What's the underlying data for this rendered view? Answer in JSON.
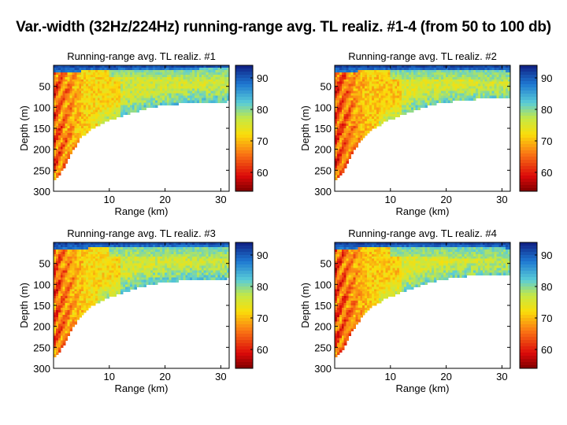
{
  "figure": {
    "title": "Var.-width (32Hz/224Hz) running-range avg. TL realiz. #1-4 (from 50 to 100 db)"
  },
  "chart_data": [
    {
      "type": "heatmap",
      "title": "Running-range avg. TL realiz. #1",
      "xlabel": "Range (km)",
      "ylabel": "Depth (m)",
      "xlim": [
        0,
        31.5
      ],
      "ylim": [
        300,
        0
      ],
      "xticks": [
        "10",
        "20",
        "30"
      ],
      "yticks": [
        "50",
        "100",
        "150",
        "200",
        "250",
        "300"
      ],
      "colorbar": {
        "range": [
          54,
          94
        ],
        "ticks": [
          "60",
          "70",
          "80",
          "90"
        ]
      },
      "field_boundary_depth_m": [
        [
          0.3,
          272
        ],
        [
          1,
          262
        ],
        [
          2,
          240
        ],
        [
          3,
          212
        ],
        [
          5,
          170
        ],
        [
          7,
          150
        ],
        [
          10,
          130
        ],
        [
          14,
          113
        ],
        [
          18,
          98
        ],
        [
          22,
          92
        ],
        [
          26,
          88
        ],
        [
          31.5,
          86
        ]
      ],
      "surface_layer_depth_m": [
        [
          0,
          18
        ],
        [
          6,
          13
        ],
        [
          15,
          9
        ],
        [
          31.5,
          8
        ]
      ],
      "upper_duct_depth_m": [
        [
          12,
          30
        ],
        [
          20,
          30
        ],
        [
          31.5,
          32
        ]
      ],
      "mid_depth_level_db": 72
    },
    {
      "type": "heatmap",
      "title": "Running-range avg. TL realiz. #2",
      "xlabel": "Range (km)",
      "ylabel": "Depth (m)",
      "xlim": [
        0,
        31.5
      ],
      "ylim": [
        300,
        0
      ],
      "xticks": [
        "10",
        "20",
        "30"
      ],
      "yticks": [
        "50",
        "100",
        "150",
        "200",
        "250",
        "300"
      ],
      "colorbar": {
        "range": [
          54,
          94
        ],
        "ticks": [
          "60",
          "70",
          "80",
          "90"
        ]
      },
      "field_boundary_depth_m": [
        [
          0.3,
          272
        ],
        [
          1,
          264
        ],
        [
          2,
          240
        ],
        [
          3,
          212
        ],
        [
          5,
          172
        ],
        [
          7,
          150
        ],
        [
          10,
          128
        ],
        [
          14,
          108
        ],
        [
          18,
          92
        ],
        [
          22,
          84
        ],
        [
          26,
          80
        ],
        [
          31.5,
          78
        ]
      ],
      "surface_layer_depth_m": [
        [
          0,
          16
        ],
        [
          8,
          12
        ],
        [
          18,
          12
        ],
        [
          31.5,
          14
        ]
      ],
      "upper_duct_depth_m": [
        [
          10,
          32
        ],
        [
          20,
          33
        ],
        [
          31.5,
          40
        ]
      ],
      "mid_depth_level_db": 71
    },
    {
      "type": "heatmap",
      "title": "Running-range avg. TL realiz. #3",
      "xlabel": "Range (km)",
      "ylabel": "Depth (m)",
      "xlim": [
        0,
        31.5
      ],
      "ylim": [
        300,
        0
      ],
      "xticks": [
        "10",
        "20",
        "30"
      ],
      "yticks": [
        "50",
        "100",
        "150",
        "200",
        "250",
        "300"
      ],
      "colorbar": {
        "range": [
          54,
          94
        ],
        "ticks": [
          "60",
          "70",
          "80",
          "90"
        ]
      },
      "field_boundary_depth_m": [
        [
          0.3,
          272
        ],
        [
          1,
          262
        ],
        [
          2,
          240
        ],
        [
          3,
          212
        ],
        [
          5,
          172
        ],
        [
          7,
          150
        ],
        [
          10,
          130
        ],
        [
          14,
          112
        ],
        [
          18,
          98
        ],
        [
          22,
          92
        ],
        [
          26,
          88
        ],
        [
          31.5,
          86
        ]
      ],
      "surface_layer_depth_m": [
        [
          0,
          18
        ],
        [
          6,
          14
        ],
        [
          15,
          10
        ],
        [
          31.5,
          10
        ]
      ],
      "upper_duct_depth_m": [
        [
          12,
          32
        ],
        [
          20,
          34
        ],
        [
          31.5,
          40
        ]
      ],
      "mid_depth_level_db": 72
    },
    {
      "type": "heatmap",
      "title": "Running-range avg. TL realiz. #4",
      "xlabel": "Range (km)",
      "ylabel": "Depth (m)",
      "xlim": [
        0,
        31.5
      ],
      "ylim": [
        300,
        0
      ],
      "xticks": [
        "10",
        "20",
        "30"
      ],
      "yticks": [
        "50",
        "100",
        "150",
        "200",
        "250",
        "300"
      ],
      "colorbar": {
        "range": [
          54,
          94
        ],
        "ticks": [
          "60",
          "70",
          "80",
          "90"
        ]
      },
      "field_boundary_depth_m": [
        [
          0.3,
          272
        ],
        [
          1,
          264
        ],
        [
          2,
          242
        ],
        [
          3,
          214
        ],
        [
          5,
          174
        ],
        [
          7,
          150
        ],
        [
          10,
          128
        ],
        [
          14,
          108
        ],
        [
          18,
          92
        ],
        [
          22,
          82
        ],
        [
          26,
          78
        ],
        [
          31.5,
          76
        ]
      ],
      "surface_layer_depth_m": [
        [
          0,
          16
        ],
        [
          8,
          12
        ],
        [
          18,
          12
        ],
        [
          31.5,
          14
        ]
      ],
      "upper_duct_depth_m": [
        [
          10,
          34
        ],
        [
          20,
          36
        ],
        [
          31.5,
          44
        ]
      ],
      "mid_depth_level_db": 71
    }
  ]
}
